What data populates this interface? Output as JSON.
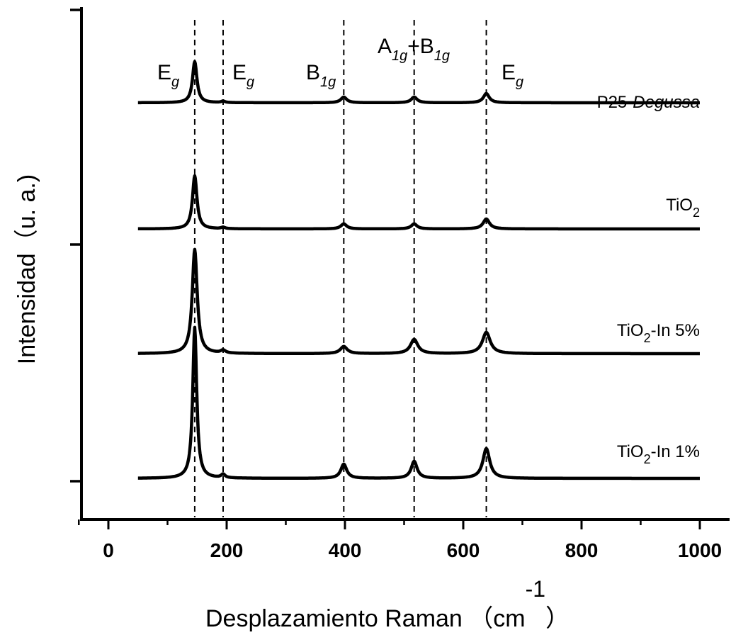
{
  "chart_data": {
    "type": "line",
    "xlabel": {
      "main": "Desplazamiento Raman （cm",
      "sup": "-1",
      "close": "）"
    },
    "ylabel": "Intensidad（u. a.)",
    "xlim": [
      -50,
      1000
    ],
    "xticks": [
      0,
      200,
      400,
      600,
      800,
      1000
    ],
    "x_tick_labels": [
      "0",
      "200",
      "400",
      "600",
      "800",
      "1000"
    ],
    "y_tick_labels_shown": false,
    "grid": false,
    "peak_positions": [
      146,
      194,
      398,
      517,
      639
    ],
    "peak_labels": [
      {
        "main": "E",
        "sub": "g",
        "x": 146
      },
      {
        "main": "E",
        "sub": "g",
        "x": 194
      },
      {
        "main": "B",
        "sub": "1g",
        "x": 398
      },
      {
        "main": "A",
        "sub": "1g",
        "join": "+B",
        "sub2": "1g",
        "x": 517
      },
      {
        "main": "E",
        "sub": "g",
        "x": 639
      }
    ],
    "series": [
      {
        "name": "P25-Degussa",
        "label": {
          "prefix": "P25-",
          "italic": "Degussa"
        },
        "x_range": [
          50,
          1000
        ],
        "peaks": [
          {
            "x": 146,
            "height": 0.58,
            "width": 9
          },
          {
            "x": 194,
            "height": 0.02,
            "width": 8
          },
          {
            "x": 398,
            "height": 0.08,
            "width": 12
          },
          {
            "x": 517,
            "height": 0.08,
            "width": 12
          },
          {
            "x": 639,
            "height": 0.13,
            "width": 12
          }
        ]
      },
      {
        "name": "TiO2",
        "label": {
          "prefix": "TiO",
          "sub": "2",
          "suffix": ""
        },
        "x_range": [
          50,
          1000
        ],
        "peaks": [
          {
            "x": 146,
            "height": 0.75,
            "width": 9
          },
          {
            "x": 194,
            "height": 0.02,
            "width": 8
          },
          {
            "x": 398,
            "height": 0.07,
            "width": 12
          },
          {
            "x": 517,
            "height": 0.07,
            "width": 12
          },
          {
            "x": 639,
            "height": 0.14,
            "width": 13
          }
        ]
      },
      {
        "name": "TiO2-In 5%",
        "label": {
          "prefix": "TiO",
          "sub": "2",
          "suffix": "-In 5%"
        },
        "x_range": [
          50,
          1000
        ],
        "peaks": [
          {
            "x": 146,
            "height": 1.47,
            "width": 10
          },
          {
            "x": 194,
            "height": 0.04,
            "width": 10
          },
          {
            "x": 398,
            "height": 0.1,
            "width": 14
          },
          {
            "x": 517,
            "height": 0.2,
            "width": 15
          },
          {
            "x": 639,
            "height": 0.3,
            "width": 16
          }
        ]
      },
      {
        "name": "TiO2-In 1%",
        "label": {
          "prefix": "TiO",
          "sub": "2",
          "suffix": "-In 1%"
        },
        "x_range": [
          50,
          1000
        ],
        "peaks": [
          {
            "x": 146,
            "height": 2.13,
            "width": 8
          },
          {
            "x": 194,
            "height": 0.05,
            "width": 8
          },
          {
            "x": 398,
            "height": 0.2,
            "width": 12
          },
          {
            "x": 517,
            "height": 0.24,
            "width": 12
          },
          {
            "x": 639,
            "height": 0.42,
            "width": 14
          }
        ]
      }
    ]
  }
}
